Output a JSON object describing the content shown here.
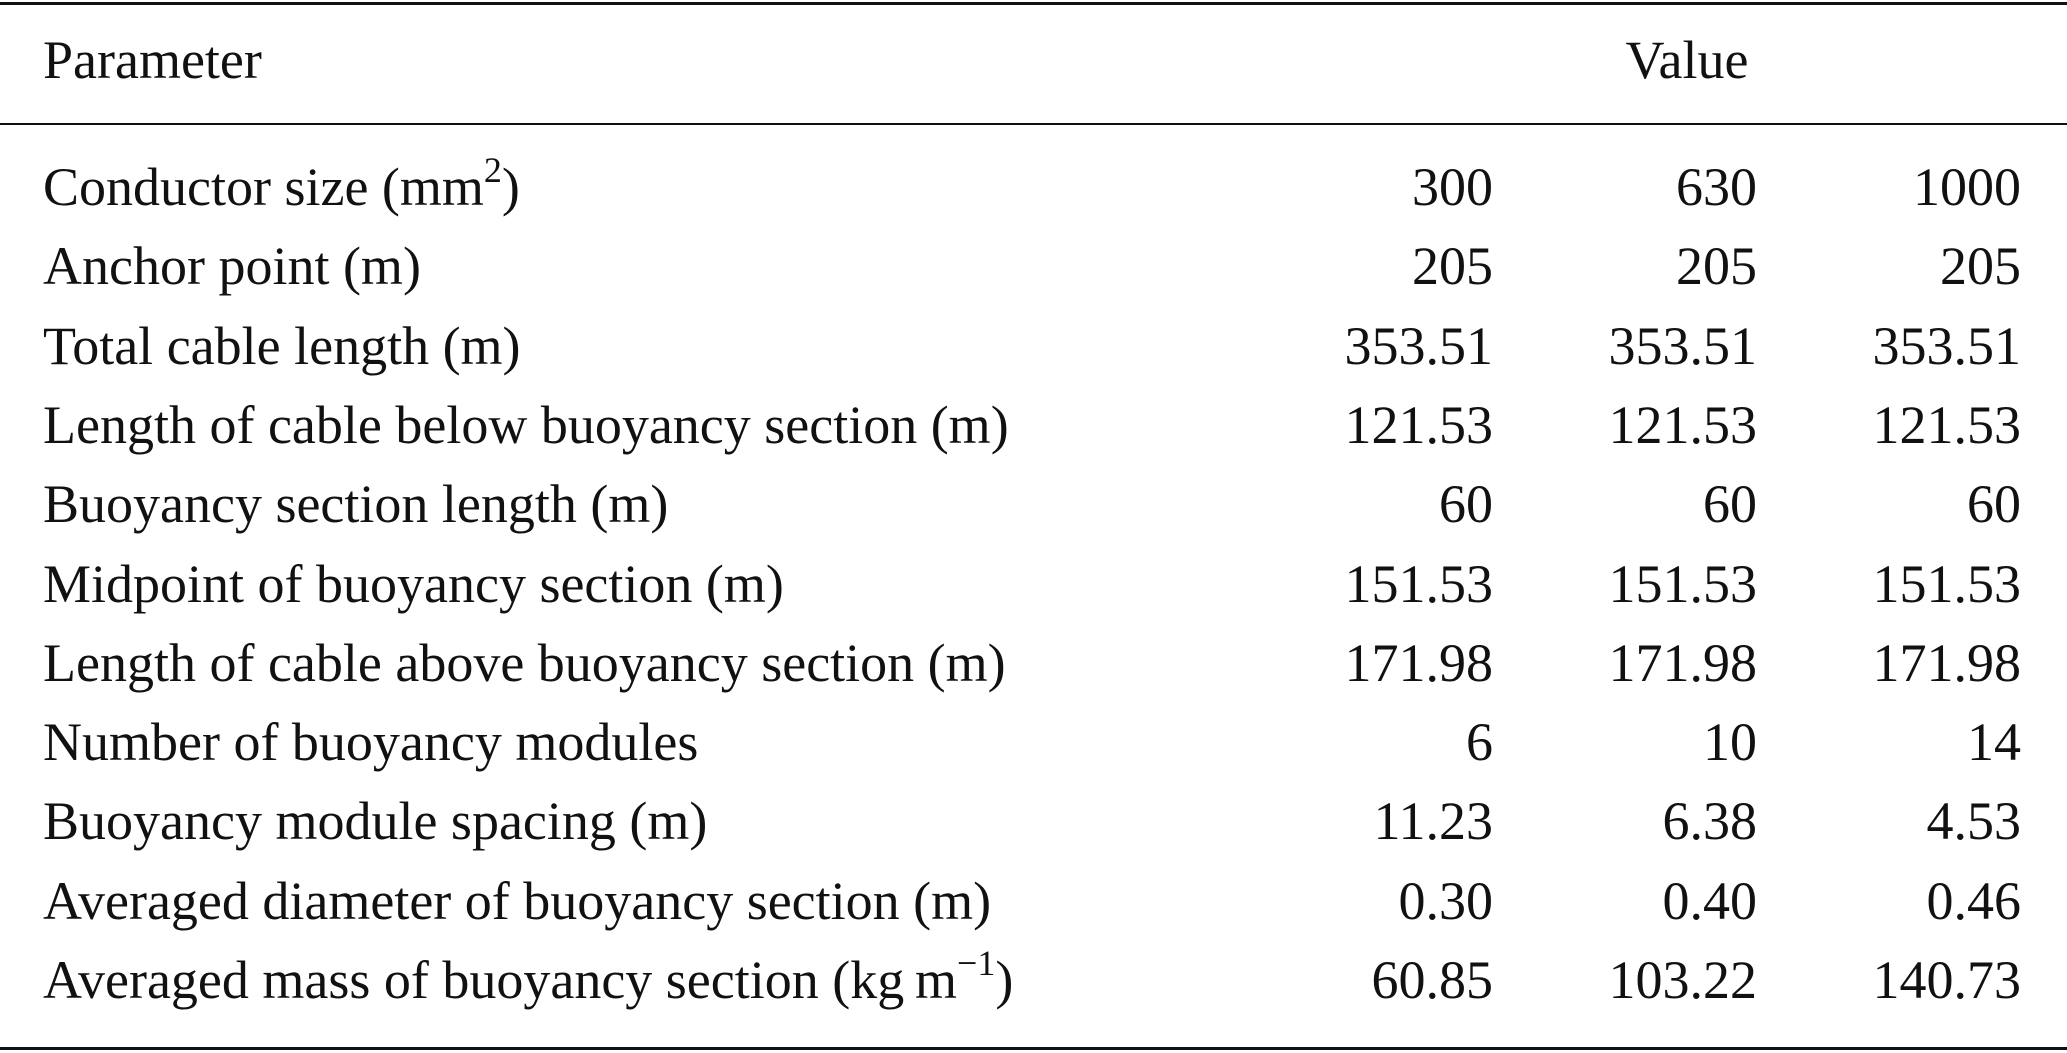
{
  "table": {
    "header": [
      "Parameter",
      "Value"
    ],
    "rows": [
      {
        "label": [
          "Conductor size (mm",
          "2",
          ")"
        ],
        "values": [
          "300",
          "630",
          "1000"
        ]
      },
      {
        "label": [
          "Anchor point (m)"
        ],
        "values": [
          "205",
          "205",
          "205"
        ]
      },
      {
        "label": [
          "Total cable length (m)"
        ],
        "values": [
          "353.51",
          "353.51",
          "353.51"
        ]
      },
      {
        "label": [
          "Length of cable below buoyancy section (m)"
        ],
        "values": [
          "121.53",
          "121.53",
          "121.53"
        ]
      },
      {
        "label": [
          "Buoyancy section length (m)"
        ],
        "values": [
          "60",
          "60",
          "60"
        ]
      },
      {
        "label": [
          "Midpoint of buoyancy section (m)"
        ],
        "values": [
          "151.53",
          "151.53",
          "151.53"
        ]
      },
      {
        "label": [
          "Length of cable above buoyancy section (m)"
        ],
        "values": [
          "171.98",
          "171.98",
          "171.98"
        ]
      },
      {
        "label": [
          "Number of buoyancy modules"
        ],
        "values": [
          "6",
          "10",
          "14"
        ]
      },
      {
        "label": [
          "Buoyancy module spacing (m)"
        ],
        "values": [
          "11.23",
          "6.38",
          "4.53"
        ]
      },
      {
        "label": [
          "Averaged diameter of buoyancy section (m)"
        ],
        "values": [
          "0.30",
          "0.40",
          "0.46"
        ]
      },
      {
        "label": [
          "Averaged mass of buoyancy section (kg m",
          "−1",
          ")"
        ],
        "values": [
          "60.85",
          "103.22",
          "140.73"
        ]
      }
    ]
  }
}
